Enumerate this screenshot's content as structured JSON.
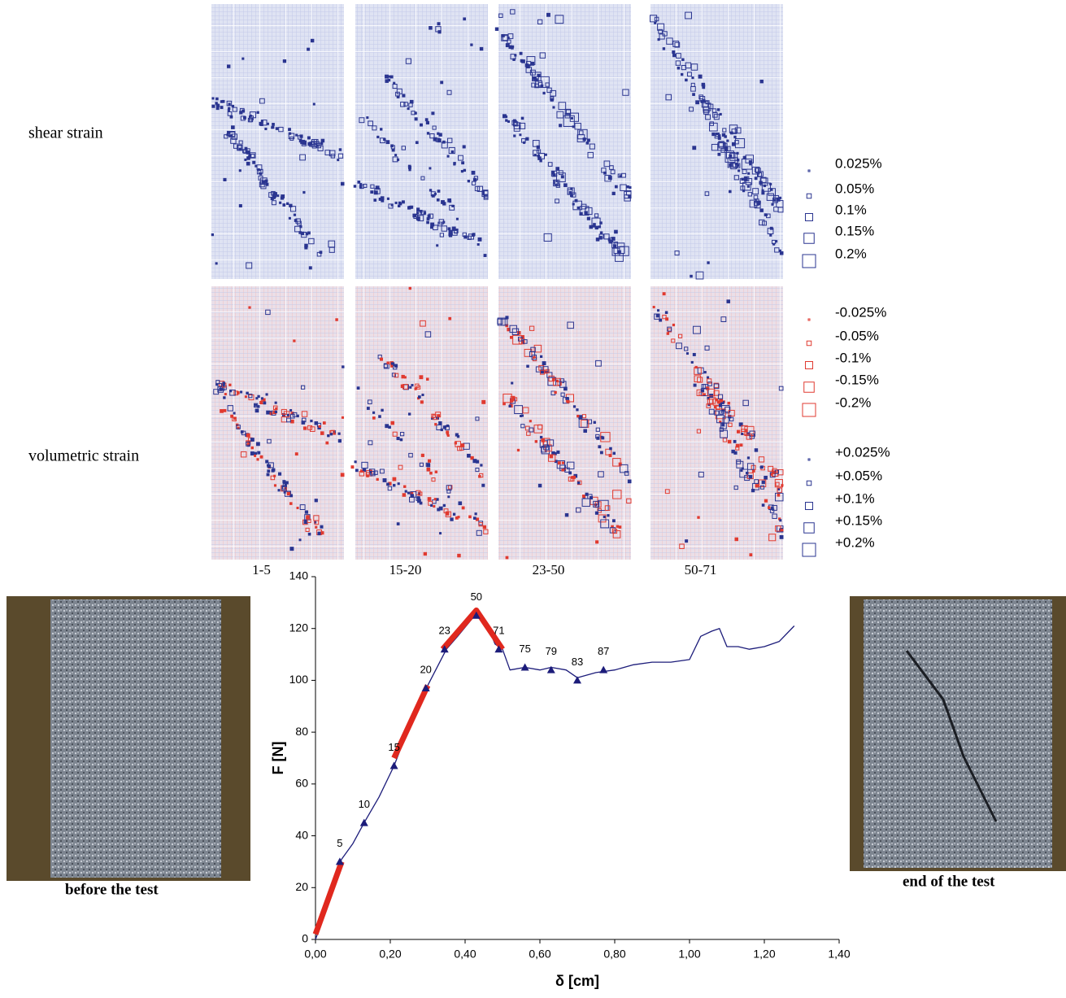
{
  "strain_maps": {
    "row_labels": [
      "shear strain",
      "volumetric strain"
    ],
    "panel_labels": [
      "1-5",
      "15-20",
      "23-50",
      "50-71"
    ],
    "shear_legend": [
      "0.025%",
      "0.05%",
      "0.1%",
      "0.15%",
      "0.2%"
    ],
    "volumetric_legend_negative": [
      "-0.025%",
      "-0.05%",
      "-0.1%",
      "-0.15%",
      "-0.2%"
    ],
    "volumetric_legend_positive": [
      "+0.025%",
      "+0.05%",
      "+0.1%",
      "+0.15%",
      "+0.2%"
    ]
  },
  "photos": {
    "before_caption": "before the test",
    "after_caption": "end of the test"
  },
  "chart_data": {
    "type": "line",
    "xlabel": "δ [cm]",
    "ylabel": "F [N]",
    "xlim": [
      0,
      1.4
    ],
    "ylim": [
      0,
      140
    ],
    "xticks": [
      {
        "value": 0,
        "label": "0,00"
      },
      {
        "value": 0.2,
        "label": "0,20"
      },
      {
        "value": 0.4,
        "label": "0,40"
      },
      {
        "value": 0.6,
        "label": "0,60"
      },
      {
        "value": 0.8,
        "label": "0,80"
      },
      {
        "value": 1.0,
        "label": "1,00"
      },
      {
        "value": 1.2,
        "label": "1,20"
      },
      {
        "value": 1.4,
        "label": "1,40"
      }
    ],
    "yticks": [
      0,
      20,
      40,
      60,
      80,
      100,
      120,
      140
    ],
    "series": [
      {
        "color": "#1c1c7a",
        "x": [
          0,
          0.02,
          0.04,
          0.06,
          0.07,
          0.1,
          0.13,
          0.17,
          0.21,
          0.25,
          0.3,
          0.35,
          0.38,
          0.42,
          0.44,
          0.46,
          0.48,
          0.5,
          0.52,
          0.56,
          0.6,
          0.63,
          0.67,
          0.7,
          0.75,
          0.8,
          0.85,
          0.9,
          0.95,
          1.0,
          1.03,
          1.06,
          1.08,
          1.1,
          1.13,
          1.16,
          1.2,
          1.24,
          1.28
        ],
        "values": [
          0,
          8,
          18,
          27,
          31,
          37,
          45,
          55,
          67,
          82,
          98,
          112,
          117,
          124,
          125,
          121,
          114,
          112,
          104,
          105,
          104,
          105,
          104,
          101,
          103,
          104,
          106,
          107,
          107,
          108,
          117,
          119,
          120,
          113,
          113,
          112,
          113,
          115,
          121
        ]
      },
      {
        "color": "#e0281e",
        "x": [
          0,
          0.07
        ],
        "values": [
          2,
          30
        ]
      },
      {
        "color": "#e0281e",
        "x": [
          0.21,
          0.3
        ],
        "values": [
          70,
          98
        ]
      },
      {
        "color": "#e0281e",
        "x": [
          0.34,
          0.43,
          0.5
        ],
        "values": [
          112,
          127,
          112
        ]
      }
    ],
    "markers": {
      "color": "#1c1c7a",
      "labels": [
        "5",
        "10",
        "15",
        "20",
        "23",
        "50",
        "71",
        "75",
        "79",
        "83",
        "87"
      ],
      "x": [
        0.065,
        0.13,
        0.21,
        0.295,
        0.345,
        0.43,
        0.49,
        0.56,
        0.63,
        0.7,
        0.77
      ],
      "values": [
        30,
        45,
        67,
        97,
        112,
        125,
        112,
        105,
        104,
        100,
        104
      ]
    }
  }
}
